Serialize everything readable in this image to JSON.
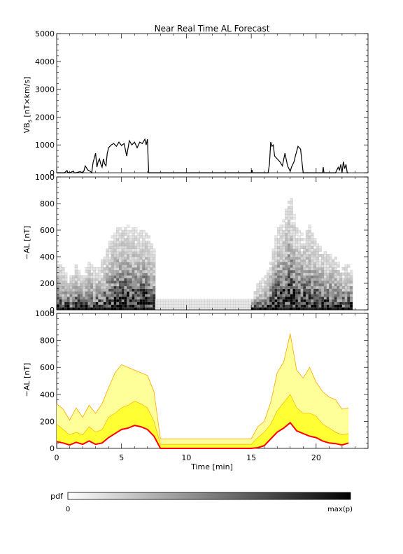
{
  "title": "Near Real Time AL Forecast",
  "colors": {
    "axis": "#000000",
    "median": "#ff0000",
    "band_inner": "#ffff33",
    "band_outer": "#ffff99",
    "band_edge": "#ffa500"
  },
  "chart_data": [
    {
      "type": "line",
      "name": "vbs",
      "ylabel_main": "VB",
      "ylabel_sub": "s",
      "ylabel_rest": " [nT×km/s]",
      "ylim": [
        0,
        5000
      ],
      "yticks": [
        0,
        1000,
        2000,
        3000,
        4000,
        5000
      ],
      "xlim": [
        0,
        24
      ],
      "series": [
        {
          "x": [
            0,
            0.6,
            0.8,
            0.85,
            1.0,
            1.3,
            1.35,
            1.5,
            1.8,
            2.0,
            2.1,
            2.2,
            2.4,
            2.6,
            2.7,
            2.8,
            3.0,
            3.1,
            3.2,
            3.3,
            3.4,
            3.5,
            3.6,
            3.7,
            3.8,
            3.9,
            4.0,
            4.2,
            4.4,
            4.6,
            4.8,
            5.0,
            5.2,
            5.4,
            5.6,
            5.8,
            6.0,
            6.2,
            6.4,
            6.6,
            6.8,
            6.9,
            7.0,
            7.05,
            7.1,
            15.0,
            15.05,
            15.1,
            16.0,
            16.3,
            16.4,
            16.5,
            16.6,
            16.7,
            16.8,
            17.0,
            17.2,
            17.4,
            17.6,
            17.8,
            18.0,
            18.1,
            18.3,
            18.4,
            18.6,
            18.8,
            19.0,
            20.0,
            20.5,
            20.55,
            20.6,
            21.0,
            21.5,
            21.7,
            21.8,
            21.9,
            22.0,
            22.1,
            22.2,
            22.3,
            22.4,
            22.5
          ],
          "y": [
            0,
            0,
            80,
            10,
            0,
            60,
            0,
            0,
            40,
            0,
            60,
            250,
            100,
            50,
            0,
            350,
            700,
            200,
            400,
            500,
            320,
            200,
            500,
            320,
            250,
            700,
            900,
            1000,
            1050,
            950,
            1100,
            980,
            1050,
            600,
            1150,
            1000,
            1100,
            900,
            1100,
            1050,
            1200,
            1000,
            1200,
            500,
            0,
            0,
            100,
            0,
            0,
            0,
            300,
            1100,
            950,
            1000,
            600,
            500,
            400,
            250,
            700,
            250,
            50,
            200,
            400,
            600,
            950,
            850,
            0,
            0,
            0,
            200,
            0,
            0,
            0,
            200,
            100,
            300,
            0,
            400,
            150,
            300,
            0,
            0
          ]
        }
      ]
    },
    {
      "type": "heatmap",
      "name": "pdf",
      "ylabel": "−AL [nT]",
      "ylim": [
        0,
        1000
      ],
      "yticks": [
        0,
        200,
        400,
        600,
        800,
        1000
      ],
      "xlim": [
        0,
        24
      ]
    },
    {
      "type": "area",
      "name": "forecast",
      "ylabel": "−AL [nT]",
      "xlabel": "Time [min]",
      "ylim": [
        0,
        1000
      ],
      "yticks": [
        0,
        200,
        400,
        600,
        800,
        1000
      ],
      "xlim": [
        0,
        24
      ],
      "xticks": [
        0,
        5,
        10,
        15,
        20
      ],
      "x": [
        0,
        0.5,
        1,
        1.5,
        2,
        2.5,
        3,
        3.5,
        4,
        4.5,
        5,
        5.5,
        6,
        6.5,
        7,
        7.5,
        8,
        9,
        10,
        11,
        12,
        13,
        14,
        15,
        15.5,
        16,
        16.5,
        17,
        17.5,
        18,
        18.5,
        19,
        19.5,
        20,
        20.5,
        21,
        21.5,
        22,
        22.5
      ],
      "series": [
        {
          "name": "median",
          "values": [
            50,
            40,
            25,
            45,
            30,
            55,
            30,
            40,
            80,
            110,
            140,
            150,
            170,
            160,
            140,
            90,
            0,
            0,
            0,
            0,
            0,
            0,
            0,
            0,
            5,
            20,
            70,
            120,
            150,
            190,
            130,
            110,
            90,
            80,
            55,
            40,
            35,
            25,
            40
          ]
        },
        {
          "name": "q75",
          "values": [
            180,
            140,
            100,
            120,
            100,
            160,
            120,
            140,
            230,
            260,
            300,
            320,
            350,
            330,
            300,
            200,
            30,
            30,
            30,
            30,
            30,
            30,
            30,
            30,
            80,
            120,
            180,
            280,
            340,
            400,
            300,
            260,
            260,
            240,
            180,
            150,
            120,
            100,
            110
          ]
        },
        {
          "name": "q95",
          "values": [
            330,
            290,
            210,
            300,
            230,
            320,
            260,
            330,
            450,
            560,
            620,
            600,
            580,
            560,
            540,
            420,
            70,
            70,
            70,
            70,
            70,
            70,
            70,
            70,
            160,
            200,
            340,
            560,
            640,
            850,
            580,
            520,
            600,
            490,
            420,
            380,
            360,
            290,
            300
          ]
        }
      ]
    }
  ],
  "colorbar": {
    "label": "pdf",
    "min_label": "0",
    "max_label": "max(p)"
  }
}
